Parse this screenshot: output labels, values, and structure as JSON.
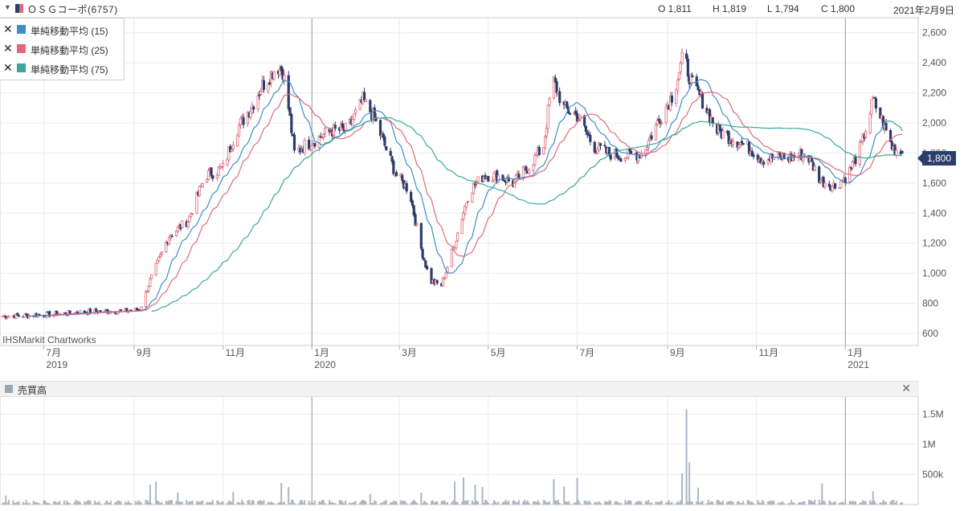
{
  "header": {
    "title": "ＯＳＧコーポ(6757)",
    "open": "O 1,811",
    "high": "H 1,819",
    "low": "L 1,794",
    "close": "C 1,800",
    "date": "2021年2月9日"
  },
  "legend": [
    {
      "label": "単純移動平均 (15)",
      "color": "#3d8fc8"
    },
    {
      "label": "単純移動平均 (25)",
      "color": "#e06a7a"
    },
    {
      "label": "単純移動平均 (75)",
      "color": "#3aa89a"
    }
  ],
  "credit": "IHSMarkit Chartworks",
  "last_price_label": "1,800",
  "volume_panel": {
    "title": "売買高",
    "close_icon": "close-icon"
  },
  "colors": {
    "up": "#e06a7a",
    "down": "#2b3d6b",
    "ma15": "#3d8fc8",
    "ma25": "#e06a7a",
    "ma75": "#3aa89a",
    "volume": "#aab7c4"
  },
  "chart_data": [
    {
      "type": "candlestick",
      "y_ticks": [
        "600",
        "800",
        "1,000",
        "1,200",
        "1,400",
        "1,600",
        "1,800",
        "2,000",
        "2,200",
        "2,400",
        "2,600"
      ],
      "y_tick_values": [
        600,
        800,
        1000,
        1200,
        1400,
        1600,
        1800,
        2000,
        2200,
        2400,
        2600
      ],
      "ylim": [
        520,
        2700
      ],
      "x_tick_labels": [
        "7月",
        "9月",
        "11月",
        "1月",
        "3月",
        "5月",
        "7月",
        "9月",
        "11月",
        "1月"
      ],
      "x_tick_dates": [
        "2019-07-01",
        "2019-09-01",
        "2019-11-01",
        "2020-01-01",
        "2020-03-01",
        "2020-05-01",
        "2020-07-01",
        "2020-09-01",
        "2020-11-01",
        "2021-01-01"
      ],
      "year_labels": [
        {
          "label": "2019",
          "date": "2019-07-01"
        },
        {
          "label": "2020",
          "date": "2020-01-01"
        },
        {
          "label": "2021",
          "date": "2021-01-01"
        }
      ],
      "year_dividers": [
        "2020-01-01",
        "2021-01-01"
      ],
      "xlim": [
        "2019-06-01",
        "2021-02-20"
      ],
      "price_path": [
        [
          "2019-06-01",
          715
        ],
        [
          "2019-06-20",
          720
        ],
        [
          "2019-07-10",
          730
        ],
        [
          "2019-08-01",
          745
        ],
        [
          "2019-08-25",
          750
        ],
        [
          "2019-09-05",
          760
        ],
        [
          "2019-09-12",
          950
        ],
        [
          "2019-09-25",
          1250
        ],
        [
          "2019-10-08",
          1350
        ],
        [
          "2019-10-20",
          1650
        ],
        [
          "2019-11-01",
          1700
        ],
        [
          "2019-11-10",
          1950
        ],
        [
          "2019-11-20",
          2100
        ],
        [
          "2019-11-28",
          2250
        ],
        [
          "2019-12-08",
          2380
        ],
        [
          "2019-12-12",
          2350
        ],
        [
          "2019-12-16",
          2100
        ],
        [
          "2019-12-20",
          1800
        ],
        [
          "2019-12-27",
          1850
        ],
        [
          "2020-01-05",
          1900
        ],
        [
          "2020-01-15",
          1950
        ],
        [
          "2020-01-25",
          1950
        ],
        [
          "2020-02-05",
          2150
        ],
        [
          "2020-02-12",
          2050
        ],
        [
          "2020-02-20",
          1850
        ],
        [
          "2020-02-28",
          1650
        ],
        [
          "2020-03-08",
          1550
        ],
        [
          "2020-03-15",
          1200
        ],
        [
          "2020-03-22",
          950
        ],
        [
          "2020-03-30",
          920
        ],
        [
          "2020-04-08",
          1200
        ],
        [
          "2020-04-18",
          1550
        ],
        [
          "2020-04-28",
          1650
        ],
        [
          "2020-05-08",
          1650
        ],
        [
          "2020-05-18",
          1600
        ],
        [
          "2020-05-28",
          1700
        ],
        [
          "2020-06-08",
          1850
        ],
        [
          "2020-06-14",
          2300
        ],
        [
          "2020-06-22",
          2100
        ],
        [
          "2020-07-01",
          2050
        ],
        [
          "2020-07-12",
          1850
        ],
        [
          "2020-07-22",
          1800
        ],
        [
          "2020-08-02",
          1780
        ],
        [
          "2020-08-15",
          1800
        ],
        [
          "2020-08-25",
          2000
        ],
        [
          "2020-09-05",
          2200
        ],
        [
          "2020-09-12",
          2450
        ],
        [
          "2020-09-18",
          2250
        ],
        [
          "2020-09-25",
          2150
        ],
        [
          "2020-10-05",
          1950
        ],
        [
          "2020-10-15",
          1900
        ],
        [
          "2020-10-25",
          1850
        ],
        [
          "2020-11-05",
          1760
        ],
        [
          "2020-11-15",
          1770
        ],
        [
          "2020-11-25",
          1770
        ],
        [
          "2020-12-05",
          1800
        ],
        [
          "2020-12-15",
          1620
        ],
        [
          "2020-12-25",
          1580
        ],
        [
          "2021-01-03",
          1660
        ],
        [
          "2021-01-12",
          1850
        ],
        [
          "2021-01-20",
          2150
        ],
        [
          "2021-01-27",
          2000
        ],
        [
          "2021-02-02",
          1840
        ],
        [
          "2021-02-09",
          1800
        ]
      ],
      "series": [
        {
          "name": "単純移動平均 (15)",
          "window": 15
        },
        {
          "name": "単純移動平均 (25)",
          "window": 25
        },
        {
          "name": "単純移動平均 (75)",
          "window": 75
        }
      ],
      "last": {
        "open": 1811,
        "high": 1819,
        "low": 1794,
        "close": 1800
      },
      "grid": true
    },
    {
      "type": "bar",
      "name": "売買高",
      "y_ticks": [
        "500k",
        "1M",
        "1.5M"
      ],
      "y_tick_values": [
        500000,
        1000000,
        1500000
      ],
      "ylim": [
        0,
        1800000
      ],
      "baseline_volume": 50000,
      "spikes": [
        {
          "date": "2019-06-05",
          "value": 150000
        },
        {
          "date": "2019-09-12",
          "value": 330000
        },
        {
          "date": "2019-09-16",
          "value": 380000
        },
        {
          "date": "2019-10-01",
          "value": 200000
        },
        {
          "date": "2019-11-08",
          "value": 210000
        },
        {
          "date": "2019-12-11",
          "value": 360000
        },
        {
          "date": "2019-12-16",
          "value": 290000
        },
        {
          "date": "2020-02-10",
          "value": 180000
        },
        {
          "date": "2020-03-16",
          "value": 200000
        },
        {
          "date": "2020-04-08",
          "value": 380000
        },
        {
          "date": "2020-04-14",
          "value": 450000
        },
        {
          "date": "2020-04-22",
          "value": 330000
        },
        {
          "date": "2020-04-27",
          "value": 290000
        },
        {
          "date": "2020-06-15",
          "value": 420000
        },
        {
          "date": "2020-06-22",
          "value": 300000
        },
        {
          "date": "2020-07-01",
          "value": 440000
        },
        {
          "date": "2020-07-05",
          "value": 380000
        },
        {
          "date": "2020-09-11",
          "value": 520000
        },
        {
          "date": "2020-09-14",
          "value": 1580000
        },
        {
          "date": "2020-09-16",
          "value": 700000
        },
        {
          "date": "2020-09-22",
          "value": 280000
        },
        {
          "date": "2020-12-16",
          "value": 350000
        },
        {
          "date": "2021-01-20",
          "value": 220000
        }
      ]
    }
  ]
}
